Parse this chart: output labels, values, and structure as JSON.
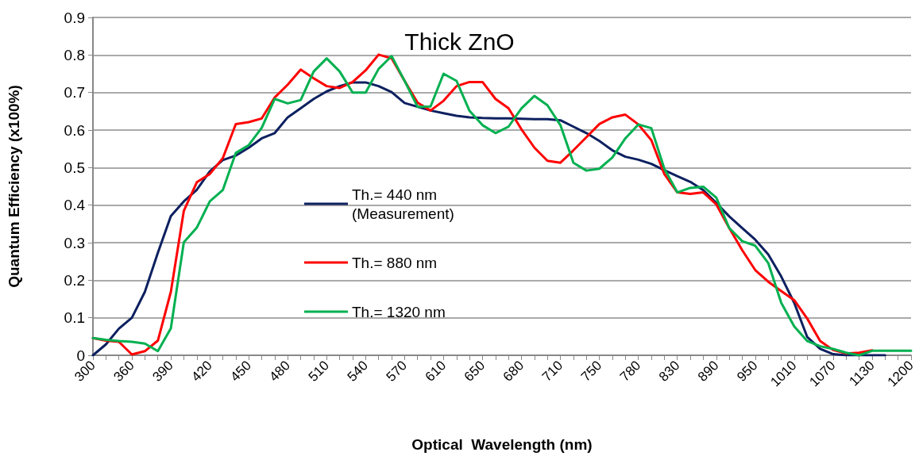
{
  "chart_data": {
    "type": "line",
    "title": "Thick ZnO",
    "xlabel": "Optical  Wavelength (nm)",
    "ylabel": "Quantum Efficiency (x100%)",
    "categories": [
      "300",
      null,
      null,
      "360",
      null,
      null,
      "390",
      null,
      null,
      "420",
      null,
      null,
      "450",
      null,
      null,
      "480",
      null,
      null,
      "510",
      null,
      null,
      "540",
      null,
      null,
      "570",
      null,
      null,
      "610",
      null,
      null,
      "650",
      null,
      null,
      "680",
      null,
      null,
      "710",
      null,
      null,
      "750",
      null,
      null,
      "780",
      null,
      null,
      "830",
      null,
      null,
      "890",
      null,
      null,
      "950",
      null,
      null,
      "1010",
      null,
      null,
      "1070",
      null,
      null,
      "1130",
      null,
      null,
      "1200"
    ],
    "series": [
      {
        "name": "Th.= 440 nm\n(Measurement)",
        "color": "#0d2060",
        "values": [
          0,
          0.029,
          0.071,
          0.1,
          0.169,
          0.273,
          0.371,
          0.41,
          0.441,
          0.49,
          0.52,
          0.532,
          0.553,
          0.578,
          0.592,
          0.634,
          0.658,
          0.683,
          0.703,
          0.717,
          0.727,
          0.727,
          0.717,
          0.701,
          0.672,
          0.662,
          0.652,
          0.645,
          0.638,
          0.634,
          0.632,
          0.631,
          0.631,
          0.63,
          0.629,
          0.629,
          0.626,
          0.609,
          0.592,
          0.571,
          0.546,
          0.529,
          0.521,
          0.51,
          0.493,
          0.477,
          0.462,
          0.44,
          0.406,
          0.37,
          0.339,
          0.308,
          0.269,
          0.21,
          0.14,
          0.049,
          0.017,
          0.003,
          0,
          0,
          0,
          0,
          null,
          null
        ]
      },
      {
        "name": "Th.= 880 nm",
        "color": "#ff0000",
        "values": [
          0.046,
          0.039,
          0.036,
          0.002,
          0.011,
          0.039,
          0.169,
          0.385,
          0.461,
          0.483,
          0.525,
          0.616,
          0.621,
          0.631,
          0.687,
          0.721,
          0.761,
          0.738,
          0.717,
          0.712,
          0.728,
          0.759,
          0.801,
          0.791,
          0.731,
          0.673,
          0.652,
          0.678,
          0.717,
          0.728,
          0.728,
          0.683,
          0.658,
          0.602,
          0.553,
          0.518,
          0.513,
          0.546,
          0.581,
          0.616,
          0.634,
          0.641,
          0.615,
          0.573,
          0.483,
          0.434,
          0.43,
          0.434,
          0.402,
          0.339,
          0.28,
          0.227,
          0.196,
          0.171,
          0.147,
          0.098,
          0.038,
          0.014,
          0.005,
          0.007,
          0.013,
          null,
          null,
          null
        ]
      },
      {
        "name": "Th.= 1320 nm",
        "color": "#00b050",
        "values": [
          0.046,
          0.041,
          0.038,
          0.036,
          0.031,
          0.011,
          0.072,
          0.301,
          0.34,
          0.41,
          0.44,
          0.539,
          0.56,
          0.606,
          0.683,
          0.671,
          0.68,
          0.756,
          0.791,
          0.756,
          0.7,
          0.7,
          0.763,
          0.797,
          0.731,
          0.662,
          0.663,
          0.75,
          0.731,
          0.651,
          0.613,
          0.592,
          0.609,
          0.658,
          0.691,
          0.666,
          0.613,
          0.513,
          0.492,
          0.497,
          0.527,
          0.578,
          0.615,
          0.605,
          0.497,
          0.434,
          0.446,
          0.449,
          0.42,
          0.339,
          0.304,
          0.292,
          0.246,
          0.14,
          0.077,
          0.038,
          0.024,
          0.017,
          0.007,
          0,
          0.012,
          0.012,
          0.012,
          0.012
        ]
      }
    ],
    "ylim": [
      0,
      0.9
    ],
    "yticks": [
      0,
      0.1,
      0.2,
      0.3,
      0.4,
      0.5,
      0.6,
      0.7,
      0.8,
      0.9
    ],
    "grid": "y",
    "legend": "center",
    "marker": "none",
    "line_style": "solid"
  }
}
